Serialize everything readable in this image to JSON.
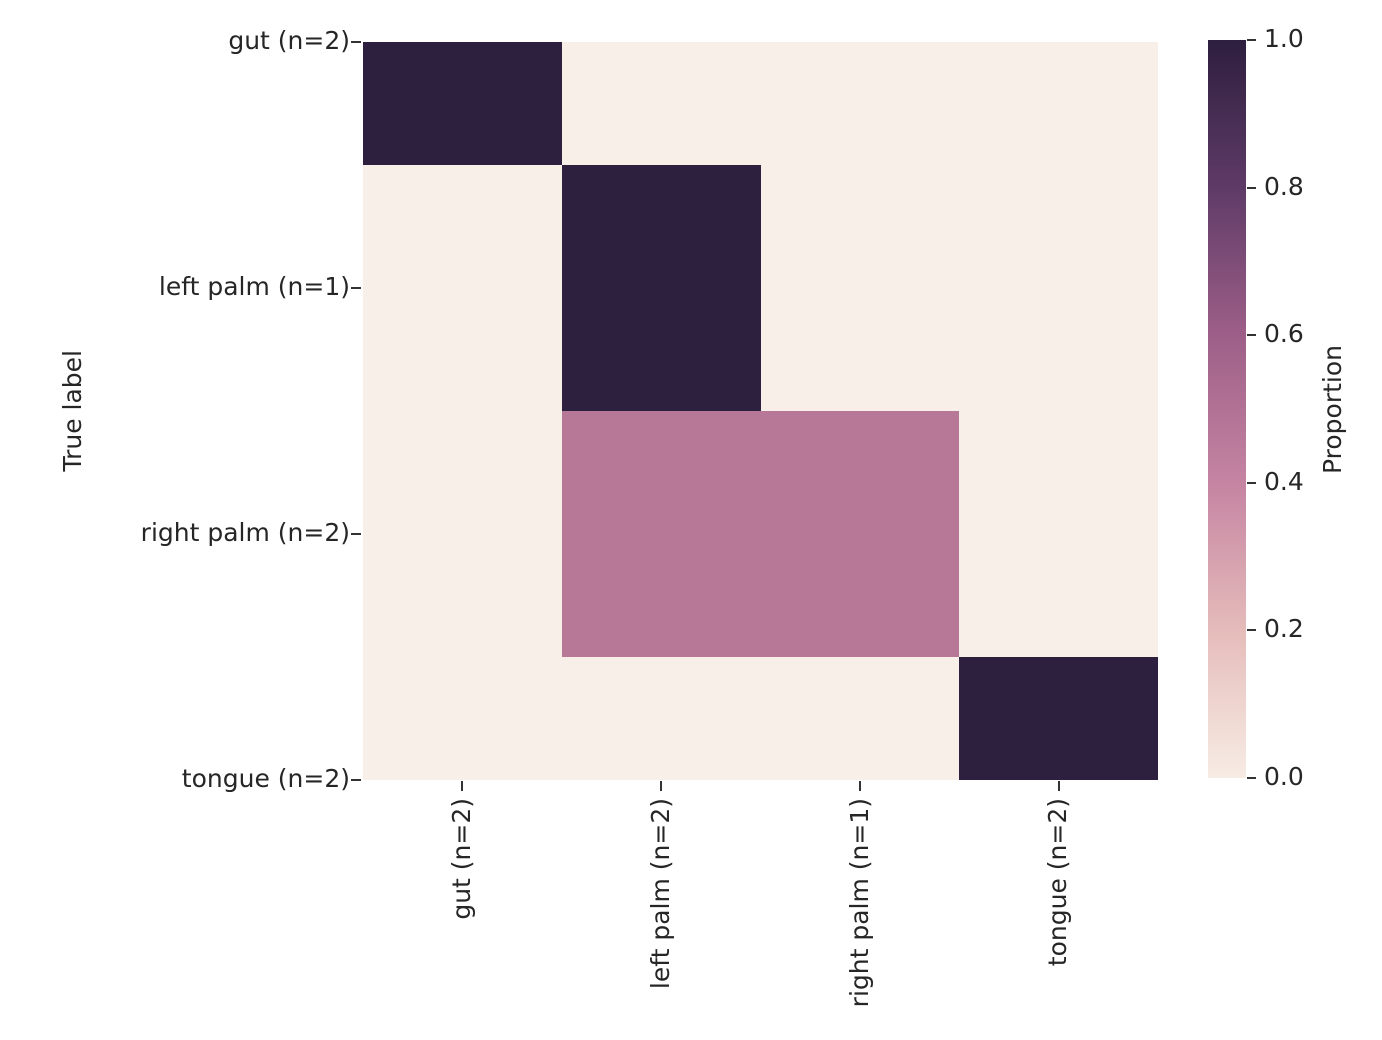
{
  "chart_data": {
    "type": "heatmap",
    "title": "",
    "xlabel": "",
    "ylabel": "True label",
    "colorbar_label": "Proportion",
    "x_categories": [
      "gut (n=2)",
      "left palm (n=2)",
      "right palm (n=1)",
      "tongue (n=2)"
    ],
    "y_categories": [
      "gut (n=2)",
      "left palm (n=1)",
      "right palm (n=2)",
      "tongue (n=2)"
    ],
    "values": [
      [
        1,
        0,
        0,
        0
      ],
      [
        0,
        1,
        0,
        0
      ],
      [
        0,
        0.5,
        0.5,
        0
      ],
      [
        0,
        0,
        0,
        1
      ]
    ],
    "value_range": [
      0,
      1
    ],
    "colorbar_tick_labels": [
      "1.0",
      "0.8",
      "0.6",
      "0.4",
      "0.2",
      "0.0"
    ],
    "row_height_ratios": [
      1,
      2,
      2,
      1
    ],
    "col_width_ratios": [
      1,
      1,
      1,
      1
    ],
    "grid": false,
    "legend_position": "right",
    "colors": {
      "background": "#ffffff",
      "text": "#262626",
      "tick": "#333333",
      "cell_value_colors": [
        {
          "value": 0,
          "color": "#f8efe9"
        },
        {
          "value": 0.5,
          "color": "#b77797"
        },
        {
          "value": 1,
          "color": "#2d1f3e"
        }
      ],
      "colorbar_gradient_stops": [
        {
          "value": 0.0,
          "color": "#f7ece4"
        },
        {
          "value": 0.2,
          "color": "#e5bcba"
        },
        {
          "value": 0.4,
          "color": "#c584a2"
        },
        {
          "value": 0.6,
          "color": "#9d5f88"
        },
        {
          "value": 0.8,
          "color": "#5e3b67"
        },
        {
          "value": 1.0,
          "color": "#2e1e3e"
        }
      ]
    }
  }
}
